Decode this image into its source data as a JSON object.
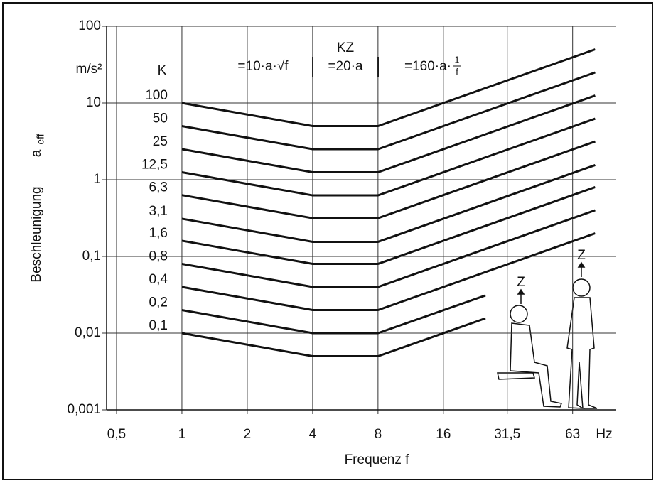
{
  "chart_data": {
    "type": "line",
    "ylabel": "Beschleunigung",
    "ylabel_symbol": "a",
    "ylabel_subscript": "eff",
    "yunit": "m/s²",
    "xlabel": "Frequenz  f",
    "xunit": "Hz",
    "legend_title": "K",
    "annotations": {
      "formula_low": "=10·a·√f",
      "zone": "KZ",
      "formula_mid": "=20·a",
      "formula_high": "=160·a·",
      "fraction_num": "1",
      "fraction_den": "f",
      "axis_seated": "Z",
      "axis_standing": "Z"
    },
    "log_x": true,
    "log_y": true,
    "grid": true,
    "color": "#111111",
    "xlim": [
      0.45,
      100
    ],
    "ylim": [
      0.001,
      100
    ],
    "xticks": [
      {
        "value": 0.5,
        "label": "0,5"
      },
      1,
      2,
      4,
      8,
      16,
      {
        "value": 31.5,
        "label": "31,5"
      },
      63
    ],
    "yticks": [
      {
        "value": 0.001,
        "label": "0,001"
      },
      {
        "value": 0.01,
        "label": "0,01"
      },
      {
        "value": 0.1,
        "label": "0,1"
      },
      1,
      10,
      100
    ],
    "x": [
      1,
      4,
      8,
      80
    ],
    "series": [
      {
        "name": "100",
        "values": [
          10,
          5,
          5,
          50
        ]
      },
      {
        "name": "50",
        "values": [
          5,
          2.5,
          2.5,
          25
        ]
      },
      {
        "name": "25",
        "values": [
          2.5,
          1.25,
          1.25,
          12.5
        ]
      },
      {
        "name": "12,5",
        "values": [
          1.25,
          0.625,
          0.625,
          6.25
        ]
      },
      {
        "name": "6,3",
        "values": [
          0.63,
          0.315,
          0.315,
          3.15
        ]
      },
      {
        "name": "3,1",
        "values": [
          0.31,
          0.155,
          0.155,
          1.55
        ]
      },
      {
        "name": "1,6",
        "values": [
          0.16,
          0.08,
          0.08,
          0.8
        ]
      },
      {
        "name": "0,8",
        "values": [
          0.08,
          0.04,
          0.04,
          0.4
        ]
      },
      {
        "name": "0,4",
        "values": [
          0.04,
          0.02,
          0.02,
          0.2
        ]
      },
      {
        "name": "0,2",
        "x": [
          1,
          4,
          8,
          25
        ],
        "values": [
          0.02,
          0.01,
          0.01,
          0.031
        ]
      },
      {
        "name": "0,1",
        "x": [
          1,
          4,
          8,
          25
        ],
        "values": [
          0.01,
          0.005,
          0.005,
          0.0156
        ]
      }
    ]
  }
}
